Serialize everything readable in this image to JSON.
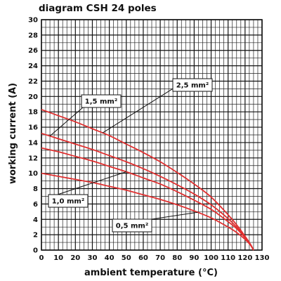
{
  "chart_data": {
    "type": "line",
    "title": "diagram CSH 24 poles",
    "xlabel": "ambient temperature (°C)",
    "ylabel": "working current (A)",
    "xlim": [
      0,
      130
    ],
    "ylim": [
      0,
      30
    ],
    "x_ticks": [
      "0",
      "10",
      "20",
      "30",
      "40",
      "50",
      "60",
      "70",
      "80",
      "90",
      "100",
      "110",
      "120",
      "130"
    ],
    "y_ticks": [
      "0",
      "2",
      "4",
      "6",
      "8",
      "10",
      "12",
      "14",
      "16",
      "18",
      "20",
      "22",
      "24",
      "26",
      "28",
      "30"
    ],
    "grid": true,
    "color": "#e03030",
    "series": [
      {
        "name": "2,5 mm²",
        "x": [
          0,
          10,
          20,
          30,
          40,
          50,
          60,
          70,
          80,
          90,
          100,
          110,
          115,
          120,
          123,
          125
        ],
        "y": [
          18.3,
          17.5,
          16.7,
          15.8,
          14.9,
          13.8,
          12.7,
          11.5,
          10.1,
          8.6,
          6.9,
          4.6,
          3.3,
          1.8,
          0.8,
          0
        ]
      },
      {
        "name": "1,5 mm²",
        "x": [
          0,
          10,
          20,
          30,
          40,
          50,
          60,
          70,
          80,
          90,
          100,
          110,
          115,
          120,
          123,
          125
        ],
        "y": [
          15.2,
          14.5,
          13.8,
          13.1,
          12.3,
          11.5,
          10.6,
          9.6,
          8.5,
          7.3,
          5.9,
          4.1,
          3.0,
          1.7,
          0.8,
          0
        ]
      },
      {
        "name": "1,0 mm²",
        "x": [
          0,
          10,
          20,
          30,
          40,
          50,
          60,
          70,
          80,
          90,
          100,
          110,
          115,
          120,
          123,
          125
        ],
        "y": [
          13.3,
          12.8,
          12.2,
          11.6,
          10.9,
          10.2,
          9.4,
          8.6,
          7.6,
          6.5,
          5.3,
          3.7,
          2.8,
          1.6,
          0.8,
          0
        ]
      },
      {
        "name": "0,5 mm²",
        "x": [
          0,
          10,
          20,
          30,
          40,
          50,
          60,
          70,
          80,
          90,
          100,
          110,
          115,
          120,
          123,
          125
        ],
        "y": [
          10.0,
          9.6,
          9.2,
          8.8,
          8.3,
          7.8,
          7.2,
          6.6,
          5.9,
          5.1,
          4.2,
          3.0,
          2.3,
          1.4,
          0.7,
          0
        ]
      }
    ],
    "callouts": [
      {
        "label": "1,5 mm²",
        "target_series": 1
      },
      {
        "label": "2,5 mm²",
        "target_series": 0
      },
      {
        "label": "1,0 mm²",
        "target_series": 2
      },
      {
        "label": "0,5 mm²",
        "target_series": 3
      }
    ]
  }
}
